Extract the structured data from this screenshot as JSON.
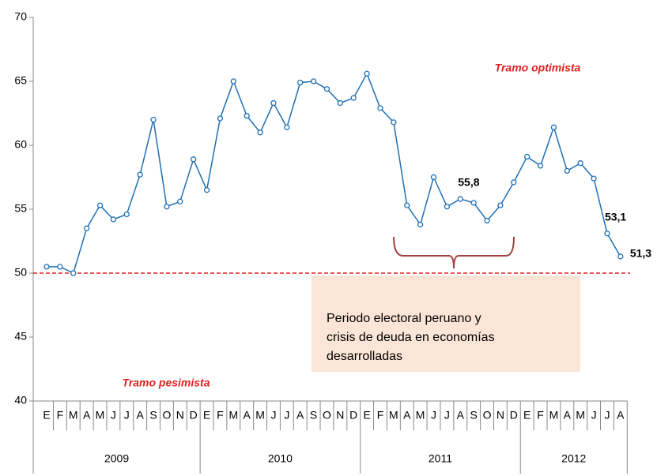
{
  "chart_data": {
    "type": "line",
    "categories": [
      "E",
      "F",
      "M",
      "A",
      "M",
      "J",
      "J",
      "A",
      "S",
      "O",
      "N",
      "D",
      "E",
      "F",
      "M",
      "A",
      "M",
      "J",
      "J",
      "A",
      "S",
      "O",
      "N",
      "D",
      "E",
      "F",
      "M",
      "A",
      "M",
      "J",
      "J",
      "A",
      "S",
      "O",
      "N",
      "D",
      "E",
      "F",
      "M",
      "A",
      "M",
      "J",
      "J",
      "A"
    ],
    "years": [
      "2009",
      "2010",
      "2011",
      "2012"
    ],
    "series": [
      {
        "color": "#1f6fb5",
        "values": [
          50.5,
          50.5,
          50.0,
          53.5,
          55.3,
          54.2,
          54.6,
          57.7,
          62.0,
          55.2,
          55.6,
          58.9,
          56.5,
          62.1,
          65.0,
          62.3,
          61.0,
          63.3,
          61.4,
          64.9,
          65.0,
          64.4,
          63.3,
          63.7,
          65.6,
          62.9,
          61.8,
          55.3,
          53.8,
          57.5,
          55.2,
          55.8,
          55.5,
          54.1,
          55.3,
          57.1,
          59.1,
          58.4,
          61.4,
          58.0,
          58.6,
          57.4,
          53.1,
          51.3
        ],
        "value_labels": [
          null,
          null,
          null,
          null,
          null,
          null,
          null,
          null,
          null,
          null,
          null,
          null,
          null,
          null,
          null,
          null,
          null,
          null,
          null,
          null,
          null,
          null,
          null,
          null,
          null,
          null,
          null,
          null,
          null,
          null,
          null,
          "55,8",
          null,
          null,
          null,
          null,
          null,
          null,
          null,
          null,
          null,
          null,
          "53,1",
          "51,3"
        ]
      }
    ],
    "ylim": [
      40,
      70
    ],
    "yticks": [
      40,
      45,
      50,
      55,
      60,
      65,
      70
    ],
    "threshold": 50,
    "threshold_color": "#e02020",
    "annotations": {
      "optimistic": "Tramo optimista",
      "pessimistic": "Tramo pesimista",
      "box": [
        "Periodo electoral  peruano y",
        "crisis de deuda  en economías",
        "desarrolladas"
      ]
    }
  }
}
